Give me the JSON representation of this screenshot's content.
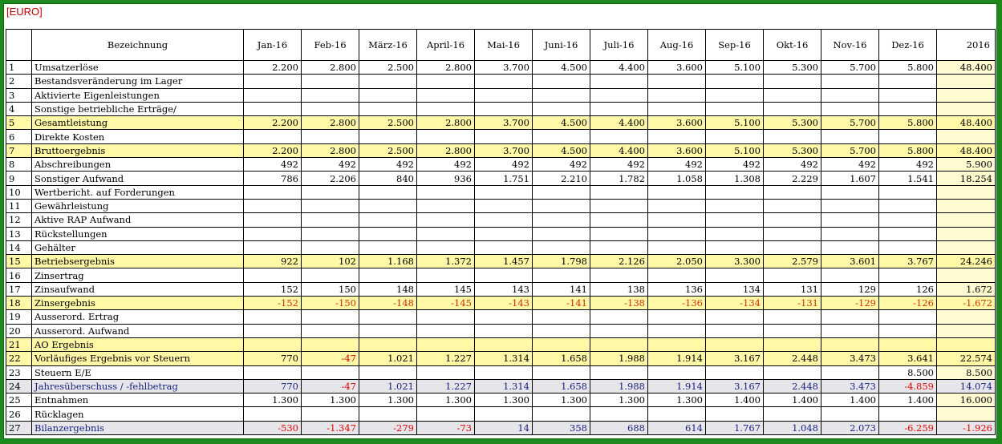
{
  "currency_label": "[EURO]",
  "header": {
    "label_col": "Bezeichnung",
    "months": [
      "Jan-16",
      "Feb-16",
      "März-16",
      "April-16",
      "Mai-16",
      "Juni-16",
      "Juli-16",
      "Aug-16",
      "Sep-16",
      "Okt-16",
      "Nov-16",
      "Dez-16"
    ],
    "total": "2016"
  },
  "rows": [
    {
      "idx": "1",
      "label": "Umsatzerlöse",
      "style": "",
      "vals": [
        "2.200",
        "2.800",
        "2.500",
        "2.800",
        "3.700",
        "4.500",
        "4.400",
        "3.600",
        "5.100",
        "5.300",
        "5.700",
        "5.800"
      ],
      "total": "48.400"
    },
    {
      "idx": "2",
      "label": "Bestandsveränderung im Lager",
      "style": "",
      "vals": [
        "",
        "",
        "",
        "",
        "",
        "",
        "",
        "",
        "",
        "",
        "",
        ""
      ],
      "total": ""
    },
    {
      "idx": "3",
      "label": "Aktivierte Eigenleistungen",
      "style": "",
      "vals": [
        "",
        "",
        "",
        "",
        "",
        "",
        "",
        "",
        "",
        "",
        "",
        ""
      ],
      "total": ""
    },
    {
      "idx": "4",
      "label": "Sonstige betriebliche Erträge/",
      "style": "",
      "vals": [
        "",
        "",
        "",
        "",
        "",
        "",
        "",
        "",
        "",
        "",
        "",
        ""
      ],
      "total": ""
    },
    {
      "idx": "5",
      "label": "Gesamtleistung",
      "style": "yellow",
      "vals": [
        "2.200",
        "2.800",
        "2.500",
        "2.800",
        "3.700",
        "4.500",
        "4.400",
        "3.600",
        "5.100",
        "5.300",
        "5.700",
        "5.800"
      ],
      "total": "48.400"
    },
    {
      "idx": "6",
      "label": "Direkte Kosten",
      "style": "",
      "vals": [
        "",
        "",
        "",
        "",
        "",
        "",
        "",
        "",
        "",
        "",
        "",
        ""
      ],
      "total": ""
    },
    {
      "idx": "7",
      "label": "Bruttoergebnis",
      "style": "yellow",
      "vals": [
        "2.200",
        "2.800",
        "2.500",
        "2.800",
        "3.700",
        "4.500",
        "4.400",
        "3.600",
        "5.100",
        "5.300",
        "5.700",
        "5.800"
      ],
      "total": "48.400"
    },
    {
      "idx": "8",
      "label": "Abschreibungen",
      "style": "",
      "vals": [
        "492",
        "492",
        "492",
        "492",
        "492",
        "492",
        "492",
        "492",
        "492",
        "492",
        "492",
        "492"
      ],
      "total": "5.900"
    },
    {
      "idx": "9",
      "label": "Sonstiger Aufwand",
      "style": "",
      "vals": [
        "786",
        "2.206",
        "840",
        "936",
        "1.751",
        "2.210",
        "1.782",
        "1.058",
        "1.308",
        "2.229",
        "1.607",
        "1.541"
      ],
      "total": "18.254"
    },
    {
      "idx": "10",
      "label": "Wertbericht. auf Forderungen",
      "style": "",
      "vals": [
        "",
        "",
        "",
        "",
        "",
        "",
        "",
        "",
        "",
        "",
        "",
        ""
      ],
      "total": ""
    },
    {
      "idx": "11",
      "label": "Gewährleistung",
      "style": "",
      "vals": [
        "",
        "",
        "",
        "",
        "",
        "",
        "",
        "",
        "",
        "",
        "",
        ""
      ],
      "total": ""
    },
    {
      "idx": "12",
      "label": "Aktive RAP Aufwand",
      "style": "",
      "vals": [
        "",
        "",
        "",
        "",
        "",
        "",
        "",
        "",
        "",
        "",
        "",
        ""
      ],
      "total": ""
    },
    {
      "idx": "13",
      "label": "Rückstellungen",
      "style": "",
      "vals": [
        "",
        "",
        "",
        "",
        "",
        "",
        "",
        "",
        "",
        "",
        "",
        ""
      ],
      "total": ""
    },
    {
      "idx": "14",
      "label": "Gehälter",
      "style": "",
      "vals": [
        "",
        "",
        "",
        "",
        "",
        "",
        "",
        "",
        "",
        "",
        "",
        ""
      ],
      "total": ""
    },
    {
      "idx": "15",
      "label": "Betriebsergebnis",
      "style": "yellow",
      "vals": [
        "922",
        "102",
        "1.168",
        "1.372",
        "1.457",
        "1.798",
        "2.126",
        "2.050",
        "3.300",
        "2.579",
        "3.601",
        "3.767"
      ],
      "total": "24.246"
    },
    {
      "idx": "16",
      "label": "Zinsertrag",
      "style": "",
      "vals": [
        "",
        "",
        "",
        "",
        "",
        "",
        "",
        "",
        "",
        "",
        "",
        ""
      ],
      "total": ""
    },
    {
      "idx": "17",
      "label": "Zinsaufwand",
      "style": "",
      "vals": [
        "152",
        "150",
        "148",
        "145",
        "143",
        "141",
        "138",
        "136",
        "134",
        "131",
        "129",
        "126"
      ],
      "total": "1.672"
    },
    {
      "idx": "18",
      "label": "Zinsergebnis",
      "style": "yellow",
      "vals": [
        "-152",
        "-150",
        "-148",
        "-145",
        "-143",
        "-141",
        "-138",
        "-136",
        "-134",
        "-131",
        "-129",
        "-126"
      ],
      "total": "-1.672"
    },
    {
      "idx": "19",
      "label": "Ausserord. Ertrag",
      "style": "",
      "vals": [
        "",
        "",
        "",
        "",
        "",
        "",
        "",
        "",
        "",
        "",
        "",
        ""
      ],
      "total": ""
    },
    {
      "idx": "20",
      "label": "Ausserord. Aufwand",
      "style": "",
      "vals": [
        "",
        "",
        "",
        "",
        "",
        "",
        "",
        "",
        "",
        "",
        "",
        ""
      ],
      "total": ""
    },
    {
      "idx": "21",
      "label": "AO Ergebnis",
      "style": "yellow",
      "vals": [
        "",
        "",
        "",
        "",
        "",
        "",
        "",
        "",
        "",
        "",
        "",
        ""
      ],
      "total": ""
    },
    {
      "idx": "22",
      "label": "Vorläufiges Ergebnis vor Steuern",
      "style": "yellow",
      "vals": [
        "770",
        "-47",
        "1.021",
        "1.227",
        "1.314",
        "1.658",
        "1.988",
        "1.914",
        "3.167",
        "2.448",
        "3.473",
        "3.641"
      ],
      "total": "22.574"
    },
    {
      "idx": "23",
      "label": "Steuern E/E",
      "style": "",
      "vals": [
        "",
        "",
        "",
        "",
        "",
        "",
        "",
        "",
        "",
        "",
        "",
        "8.500"
      ],
      "total": "8.500"
    },
    {
      "idx": "24",
      "label": "Jahresüberschuss / -fehlbetrag",
      "style": "grey",
      "vals": [
        "770",
        "-47",
        "1.021",
        "1.227",
        "1.314",
        "1.658",
        "1.988",
        "1.914",
        "3.167",
        "2.448",
        "3.473",
        "-4.859"
      ],
      "total": "14.074"
    },
    {
      "idx": "25",
      "label": "Entnahmen",
      "style": "",
      "vals": [
        "1.300",
        "1.300",
        "1.300",
        "1.300",
        "1.300",
        "1.300",
        "1.300",
        "1.300",
        "1.400",
        "1.400",
        "1.400",
        "1.400"
      ],
      "total": "16.000"
    },
    {
      "idx": "26",
      "label": "Rücklagen",
      "style": "",
      "vals": [
        "",
        "",
        "",
        "",
        "",
        "",
        "",
        "",
        "",
        "",
        "",
        ""
      ],
      "total": ""
    },
    {
      "idx": "27",
      "label": "Bilanzergebnis",
      "style": "grey",
      "vals": [
        "-530",
        "-1.347",
        "-279",
        "-73",
        "14",
        "358",
        "688",
        "614",
        "1.767",
        "1.048",
        "2.073",
        "-6.259"
      ],
      "total": "-1.926"
    }
  ]
}
